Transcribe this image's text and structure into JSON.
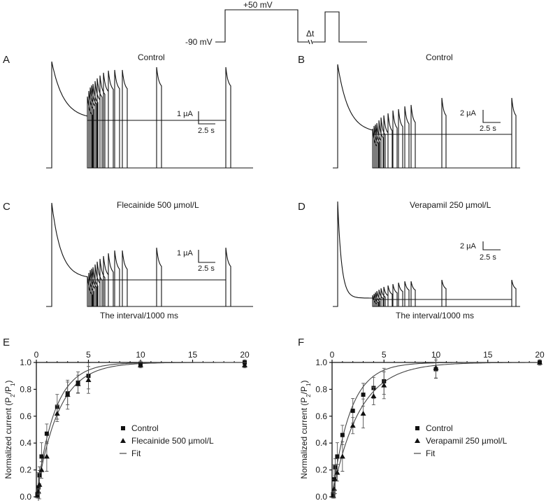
{
  "protocol": {
    "v_high": "+50 mV",
    "v_hold": "-90 mV",
    "delta": "Δt"
  },
  "panels": {
    "A": {
      "letter": "A",
      "title": "Control",
      "scale_y": "1 µA",
      "scale_x": "2.5 s"
    },
    "B": {
      "letter": "B",
      "title": "Control",
      "scale_y": "2 µA",
      "scale_x": "2.5 s"
    },
    "C": {
      "letter": "C",
      "title": "Flecainide 500 µmol/L",
      "scale_y": "1 µA",
      "scale_x": "2.5 s",
      "xlabel": "The interval/1000 ms"
    },
    "D": {
      "letter": "D",
      "title": "Verapamil 250 µmol/L",
      "scale_y": "2 µA",
      "scale_x": "2.5 s",
      "xlabel": "The interval/1000 ms"
    }
  },
  "chart_data": [
    {
      "type": "scatter",
      "panel": "E",
      "ylabel": "Normalized current (P2/P1)",
      "xlim": [
        0,
        20
      ],
      "ylim": [
        0,
        1.0
      ],
      "xticks": [
        "0",
        "5",
        "10",
        "15",
        "20"
      ],
      "yticks": [
        "0.0",
        "0.2",
        "0.4",
        "0.6",
        "0.8",
        "1.0"
      ],
      "legend": [
        "Control",
        "Flecainide 500 µmol/L",
        "Fit"
      ],
      "series": [
        {
          "name": "Control",
          "marker": "square",
          "x": [
            0.1,
            0.2,
            0.3,
            0.5,
            1.0,
            2.0,
            3.0,
            4.0,
            5.0,
            10.0,
            20.0
          ],
          "y": [
            0.02,
            0.07,
            0.16,
            0.3,
            0.47,
            0.67,
            0.77,
            0.85,
            0.9,
            0.99,
            1.0
          ]
        },
        {
          "name": "Flecainide 500 µmol/L",
          "marker": "triangle",
          "x": [
            0.1,
            0.2,
            0.3,
            0.5,
            1.0,
            2.0,
            3.0,
            4.0,
            5.0,
            10.0,
            20.0
          ],
          "y": [
            0.01,
            0.04,
            0.09,
            0.2,
            0.3,
            0.62,
            0.76,
            0.84,
            0.87,
            0.98,
            0.98
          ]
        }
      ],
      "fits": [
        {
          "tau": 1.75
        },
        {
          "tau": 2.1
        }
      ]
    },
    {
      "type": "scatter",
      "panel": "F",
      "ylabel": "Normalized current (P2/P1)",
      "xlim": [
        0,
        20
      ],
      "ylim": [
        0,
        1.0
      ],
      "xticks": [
        "0",
        "5",
        "10",
        "15",
        "20"
      ],
      "yticks": [
        "0.0",
        "0.2",
        "0.4",
        "0.6",
        "0.8",
        "1.0"
      ],
      "legend": [
        "Control",
        "Verapamil 250 µmol/L",
        "Fit"
      ],
      "series": [
        {
          "name": "Control",
          "marker": "square",
          "x": [
            0.1,
            0.2,
            0.3,
            0.5,
            1.0,
            2.0,
            3.0,
            4.0,
            5.0,
            10.0,
            20.0
          ],
          "y": [
            0.02,
            0.13,
            0.22,
            0.3,
            0.46,
            0.64,
            0.76,
            0.81,
            0.86,
            0.95,
            1.0
          ]
        },
        {
          "name": "Verapamil 250 µmol/L",
          "marker": "triangle",
          "x": [
            0.1,
            0.2,
            0.3,
            0.5,
            1.0,
            2.0,
            3.0,
            4.0,
            5.0,
            10.0,
            20.0
          ],
          "y": [
            0.01,
            0.06,
            0.13,
            0.18,
            0.3,
            0.53,
            0.62,
            0.75,
            0.83,
            0.96,
            1.0
          ]
        }
      ],
      "fits": [
        {
          "tau": 1.75
        },
        {
          "tau": 2.6
        }
      ]
    }
  ]
}
